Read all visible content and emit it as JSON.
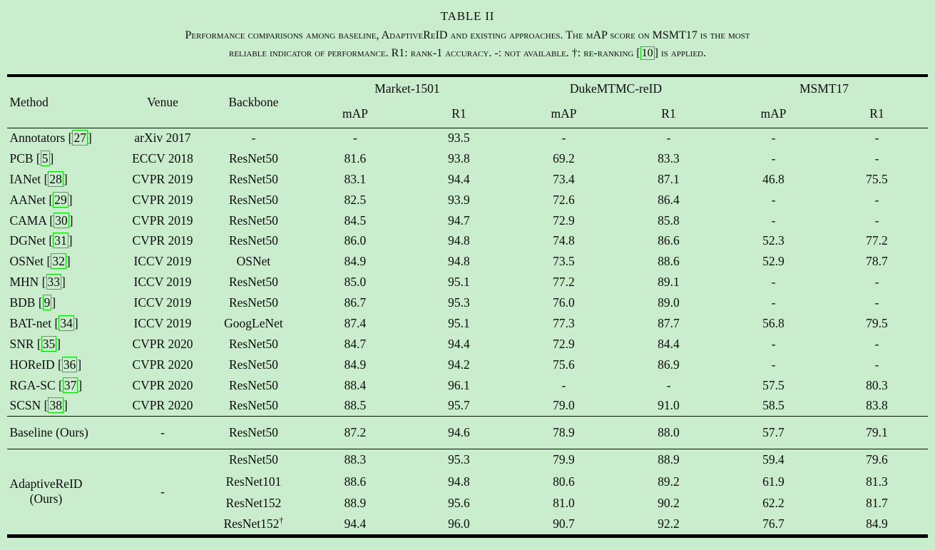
{
  "page": {
    "background": "#c9edcd",
    "text_color": "#0c0c0c",
    "citation_border_color": "#00dc00"
  },
  "caption": {
    "title": "TABLE II",
    "line1": "Performance comparisons among baseline, AdaptiveReID and existing approaches. The mAP score on MSMT17 is the most",
    "line2_pre": "reliable indicator of performance. R1: rank-1 accuracy. -: not available. †: re-ranking [",
    "line2_cite": "10",
    "line2_post": "] is applied."
  },
  "table": {
    "col_headers": {
      "method": "Method",
      "venue": "Venue",
      "backbone": "Backbone",
      "map": "mAP",
      "r1": "R1"
    },
    "dataset_groups": [
      "Market-1501",
      "DukeMTMC-reID",
      "MSMT17"
    ],
    "rows": [
      {
        "method": "Annotators",
        "cite": "27",
        "venue": "arXiv 2017",
        "backbone": "-",
        "values": [
          "-",
          "93.5",
          "-",
          "-",
          "-",
          "-"
        ]
      },
      {
        "method": "PCB",
        "cite": "5",
        "venue": "ECCV 2018",
        "backbone": "ResNet50",
        "values": [
          "81.6",
          "93.8",
          "69.2",
          "83.3",
          "-",
          "-"
        ]
      },
      {
        "method": "IANet",
        "cite": "28",
        "venue": "CVPR 2019",
        "backbone": "ResNet50",
        "values": [
          "83.1",
          "94.4",
          "73.4",
          "87.1",
          "46.8",
          "75.5"
        ]
      },
      {
        "method": "AANet",
        "cite": "29",
        "venue": "CVPR 2019",
        "backbone": "ResNet50",
        "values": [
          "82.5",
          "93.9",
          "72.6",
          "86.4",
          "-",
          "-"
        ]
      },
      {
        "method": "CAMA",
        "cite": "30",
        "venue": "CVPR 2019",
        "backbone": "ResNet50",
        "values": [
          "84.5",
          "94.7",
          "72.9",
          "85.8",
          "-",
          "-"
        ]
      },
      {
        "method": "DGNet",
        "cite": "31",
        "venue": "CVPR 2019",
        "backbone": "ResNet50",
        "values": [
          "86.0",
          "94.8",
          "74.8",
          "86.6",
          "52.3",
          "77.2"
        ]
      },
      {
        "method": "OSNet",
        "cite": "32",
        "venue": "ICCV 2019",
        "backbone": "OSNet",
        "values": [
          "84.9",
          "94.8",
          "73.5",
          "88.6",
          "52.9",
          "78.7"
        ]
      },
      {
        "method": "MHN",
        "cite": "33",
        "venue": "ICCV 2019",
        "backbone": "ResNet50",
        "values": [
          "85.0",
          "95.1",
          "77.2",
          "89.1",
          "-",
          "-"
        ]
      },
      {
        "method": "BDB",
        "cite": "9",
        "venue": "ICCV 2019",
        "backbone": "ResNet50",
        "values": [
          "86.7",
          "95.3",
          "76.0",
          "89.0",
          "-",
          "-"
        ]
      },
      {
        "method": "BAT-net",
        "cite": "34",
        "venue": "ICCV 2019",
        "backbone": "GoogLeNet",
        "values": [
          "87.4",
          "95.1",
          "77.3",
          "87.7",
          "56.8",
          "79.5"
        ]
      },
      {
        "method": "SNR",
        "cite": "35",
        "venue": "CVPR 2020",
        "backbone": "ResNet50",
        "values": [
          "84.7",
          "94.4",
          "72.9",
          "84.4",
          "-",
          "-"
        ]
      },
      {
        "method": "HOReID",
        "cite": "36",
        "venue": "CVPR 2020",
        "backbone": "ResNet50",
        "values": [
          "84.9",
          "94.2",
          "75.6",
          "86.9",
          "-",
          "-"
        ]
      },
      {
        "method": "RGA-SC",
        "cite": "37",
        "venue": "CVPR 2020",
        "backbone": "ResNet50",
        "values": [
          "88.4",
          "96.1",
          "-",
          "-",
          "57.5",
          "80.3"
        ]
      },
      {
        "method": "SCSN",
        "cite": "38",
        "venue": "CVPR 2020",
        "backbone": "ResNet50",
        "values": [
          "88.5",
          "95.7",
          "79.0",
          "91.0",
          "58.5",
          "83.8"
        ]
      }
    ],
    "baseline_row": {
      "method": "Baseline (Ours)",
      "venue": "-",
      "backbone": "ResNet50",
      "values": [
        "87.2",
        "94.6",
        "78.9",
        "88.0",
        "57.7",
        "79.1"
      ]
    },
    "adaptive_section": {
      "method_line1": "AdaptiveReID",
      "method_line2": "(Ours)",
      "venue": "-",
      "rows": [
        {
          "backbone": "ResNet50",
          "sup": "",
          "values": [
            "88.3",
            "95.3",
            "79.9",
            "88.9",
            "59.4",
            "79.6"
          ]
        },
        {
          "backbone": "ResNet101",
          "sup": "",
          "values": [
            "88.6",
            "94.8",
            "80.6",
            "89.2",
            "61.9",
            "81.3"
          ]
        },
        {
          "backbone": "ResNet152",
          "sup": "",
          "values": [
            "88.9",
            "95.6",
            "81.0",
            "90.2",
            "62.2",
            "81.7"
          ]
        },
        {
          "backbone": "ResNet152",
          "sup": "†",
          "values": [
            "94.4",
            "96.0",
            "90.7",
            "92.2",
            "76.7",
            "84.9"
          ]
        }
      ]
    }
  }
}
